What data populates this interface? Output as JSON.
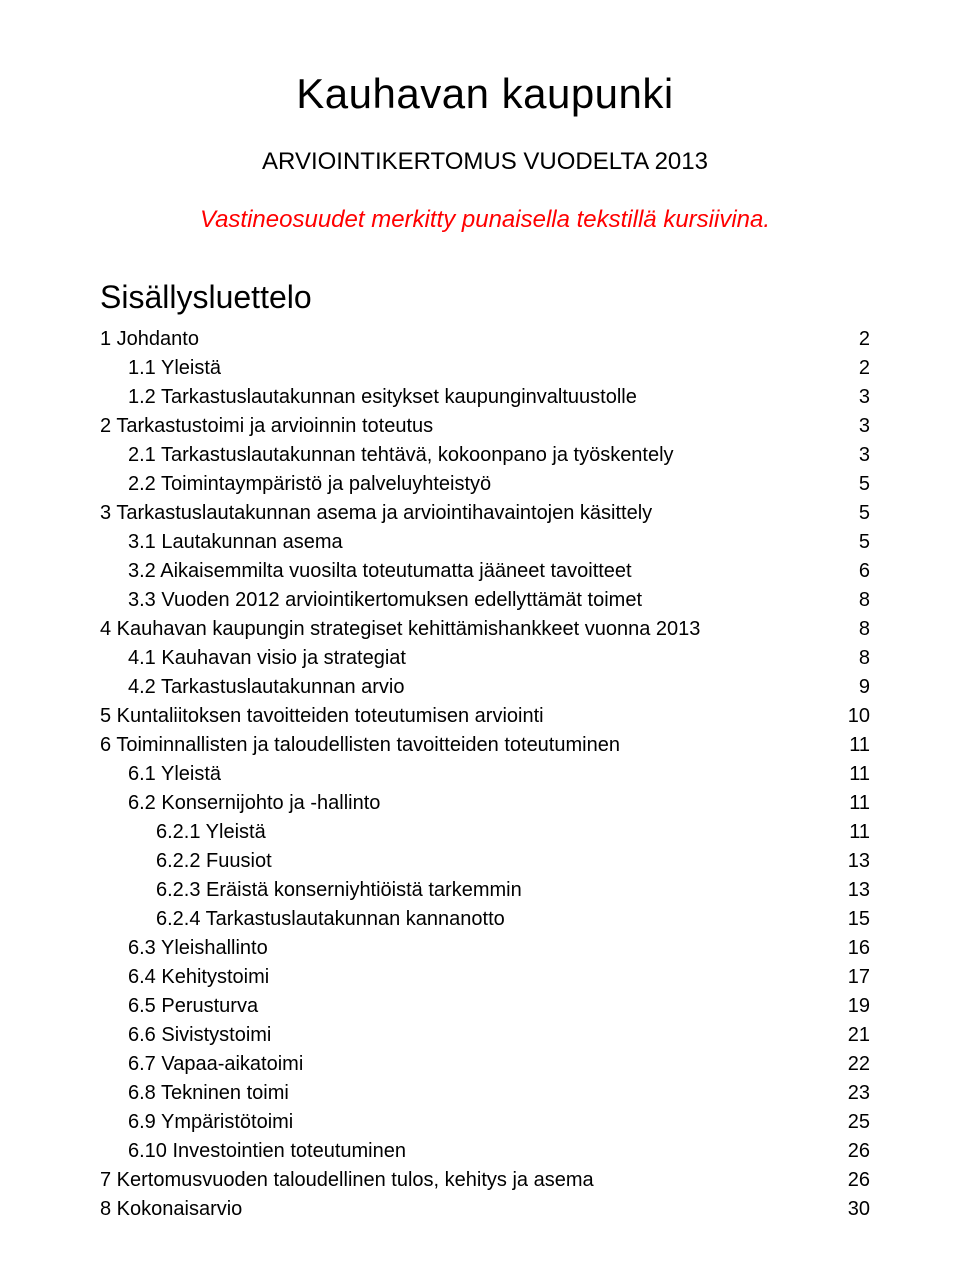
{
  "mainTitle": "Kauhavan kaupunki",
  "subtitle": "ARVIOINTIKERTOMUS VUODELTA 2013",
  "note": "Vastineosuudet merkitty punaisella tekstillä kursiivina.",
  "tocTitle": "Sisällysluettelo",
  "colors": {
    "text": "#000000",
    "noteRed": "#ff0000",
    "background": "#ffffff"
  },
  "fonts": {
    "family": "Arial",
    "mainTitleSize": 42,
    "subtitleSize": 24,
    "noteSize": 24,
    "tocTitleSize": 32,
    "tocSize": 20
  },
  "toc": [
    {
      "label": "1 Johdanto",
      "page": "2",
      "level": 0
    },
    {
      "label": "1.1 Yleistä",
      "page": "2",
      "level": 1
    },
    {
      "label": "1.2 Tarkastuslautakunnan esitykset kaupunginvaltuustolle",
      "page": "3",
      "level": 1
    },
    {
      "label": "2 Tarkastustoimi ja arvioinnin toteutus",
      "page": "3",
      "level": 0
    },
    {
      "label": "2.1 Tarkastuslautakunnan tehtävä, kokoonpano ja työskentely",
      "page": "3",
      "level": 1
    },
    {
      "label": "2.2 Toimintaympäristö ja palveluyhteistyö",
      "page": "5",
      "level": 1
    },
    {
      "label": "3 Tarkastuslautakunnan asema ja arviointihavaintojen käsittely",
      "page": "5",
      "level": 0
    },
    {
      "label": "3.1 Lautakunnan asema",
      "page": "5",
      "level": 1
    },
    {
      "label": "3.2 Aikaisemmilta vuosilta toteutumatta jääneet tavoitteet",
      "page": "6",
      "level": 1
    },
    {
      "label": "3.3 Vuoden 2012 arviointikertomuksen edellyttämät toimet",
      "page": "8",
      "level": 1
    },
    {
      "label": "4 Kauhavan kaupungin strategiset kehittämishankkeet vuonna 2013",
      "page": "8",
      "level": 0
    },
    {
      "label": "4.1 Kauhavan visio ja strategiat",
      "page": "8",
      "level": 1
    },
    {
      "label": "4.2 Tarkastuslautakunnan arvio",
      "page": "9",
      "level": 1
    },
    {
      "label": "5 Kuntaliitoksen tavoitteiden toteutumisen arviointi",
      "page": "10",
      "level": 0
    },
    {
      "label": "6 Toiminnallisten ja taloudellisten tavoitteiden toteutuminen",
      "page": "11",
      "level": 0
    },
    {
      "label": "6.1 Yleistä",
      "page": "11",
      "level": 1
    },
    {
      "label": "6.2 Konsernijohto ja -hallinto",
      "page": "11",
      "level": 1
    },
    {
      "label": "6.2.1 Yleistä",
      "page": "11",
      "level": 2
    },
    {
      "label": "6.2.2 Fuusiot",
      "page": "13",
      "level": 2
    },
    {
      "label": "6.2.3 Eräistä konserniyhtiöistä tarkemmin ",
      "page": "13",
      "level": 2
    },
    {
      "label": "6.2.4 Tarkastuslautakunnan kannanotto",
      "page": "15",
      "level": 2
    },
    {
      "label": "6.3 Yleishallinto",
      "page": "16",
      "level": 1
    },
    {
      "label": "6.4 Kehitystoimi",
      "page": "17",
      "level": 1
    },
    {
      "label": "6.5 Perusturva",
      "page": "19",
      "level": 1
    },
    {
      "label": "6.6 Sivistystoimi ",
      "page": "21",
      "level": 1
    },
    {
      "label": "6.7 Vapaa-aikatoimi",
      "page": "22",
      "level": 1
    },
    {
      "label": "6.8 Tekninen toimi",
      "page": "23",
      "level": 1
    },
    {
      "label": "6.9 Ympäristötoimi",
      "page": "25",
      "level": 1
    },
    {
      "label": "6.10 Investointien toteutuminen",
      "page": "26",
      "level": 1
    },
    {
      "label": "7 Kertomusvuoden taloudellinen tulos, kehitys ja asema",
      "page": "26",
      "level": 0
    },
    {
      "label": "8 Kokonaisarvio",
      "page": "30",
      "level": 0
    }
  ]
}
